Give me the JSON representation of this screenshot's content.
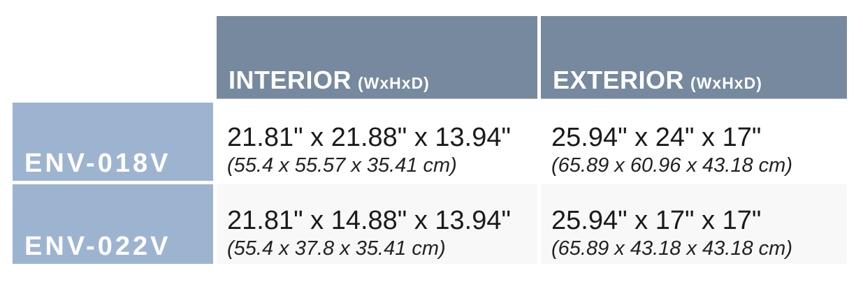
{
  "table": {
    "columns": [
      {
        "label": "INTERIOR",
        "dims": "(WxHxD)"
      },
      {
        "label": "EXTERIOR",
        "dims": "(WxHxD)"
      }
    ],
    "rows": [
      {
        "model": "ENV-018V",
        "interior": {
          "inches": "21.81\" x 21.88\" x 13.94\"",
          "cm": "(55.4 x 55.57 x 35.41 cm)"
        },
        "exterior": {
          "inches": "25.94\" x 24\" x 17\"",
          "cm": "(65.89 x 60.96 x 43.18 cm)"
        }
      },
      {
        "model": "ENV-022V",
        "interior": {
          "inches": "21.81\" x 14.88\" x 13.94\"",
          "cm": "(55.4 x 37.8 x 35.41 cm)"
        },
        "exterior": {
          "inches": "25.94\" x 17\" x 17\"",
          "cm": "(65.89 x 43.18 x 43.18 cm)"
        }
      }
    ],
    "colors": {
      "header_bg": "#76899E",
      "row_label_bg": "#9DB4D1",
      "alt_row_bg": "#F8F8F8",
      "text_dark": "#1A1A1A"
    }
  }
}
